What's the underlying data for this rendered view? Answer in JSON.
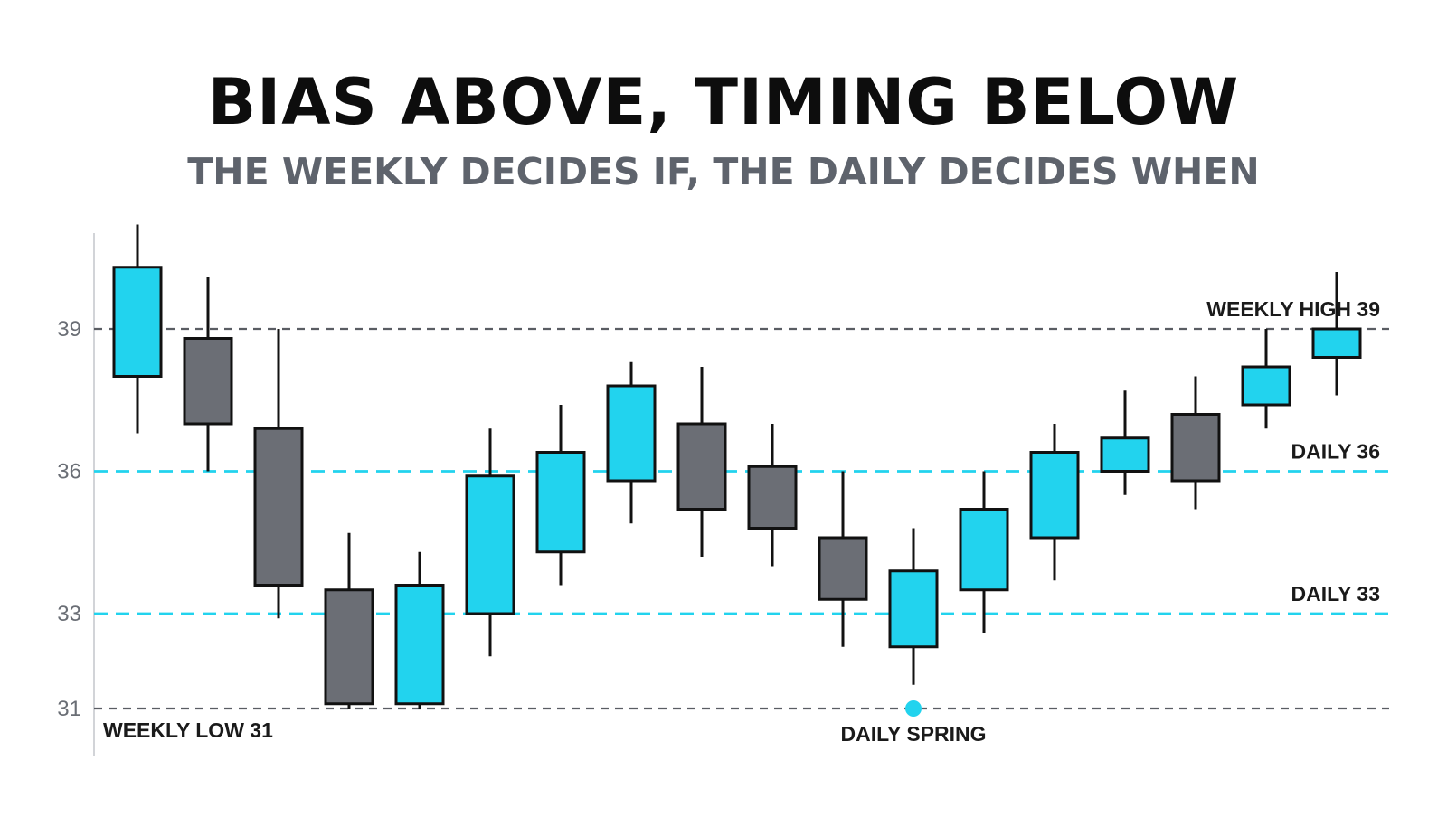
{
  "title": "BIAS ABOVE, TIMING BELOW",
  "subtitle": "THE WEEKLY DECIDES IF, THE DAILY DECIDES WHEN",
  "colors": {
    "bullish": "#22d3ee",
    "bearish": "#6b6e75",
    "weekly_line": "#5a5d63",
    "daily_line": "#22d3ee",
    "outline": "#111111"
  },
  "chart_data": {
    "type": "candlestick",
    "y_ticks": [
      "39",
      "36",
      "33",
      "31"
    ],
    "y_tick_values": [
      39,
      36,
      33,
      31
    ],
    "ylim": [
      29.7,
      40.6
    ],
    "grid": false,
    "levels": [
      {
        "value": 39,
        "label": "WEEKLY HIGH 39",
        "style": "weekly",
        "label_side": "right"
      },
      {
        "value": 36,
        "label": "DAILY 36",
        "style": "daily",
        "label_side": "right"
      },
      {
        "value": 33,
        "label": "DAILY 33",
        "style": "daily",
        "label_side": "right"
      },
      {
        "value": 31,
        "label": "WEEKLY LOW 31",
        "style": "weekly",
        "label_side": "left"
      }
    ],
    "candles": [
      {
        "open": 38.0,
        "close": 40.3,
        "high": 41.2,
        "low": 36.8
      },
      {
        "open": 38.8,
        "close": 37.0,
        "high": 40.1,
        "low": 36.0
      },
      {
        "open": 36.9,
        "close": 33.6,
        "high": 39.0,
        "low": 32.9
      },
      {
        "open": 33.5,
        "close": 31.1,
        "high": 34.7,
        "low": 31.0
      },
      {
        "open": 31.1,
        "close": 33.6,
        "high": 34.3,
        "low": 31.0
      },
      {
        "open": 33.0,
        "close": 35.9,
        "high": 36.9,
        "low": 32.1
      },
      {
        "open": 34.3,
        "close": 36.4,
        "high": 37.4,
        "low": 33.6
      },
      {
        "open": 35.8,
        "close": 37.8,
        "high": 38.3,
        "low": 34.9
      },
      {
        "open": 37.0,
        "close": 35.2,
        "high": 38.2,
        "low": 34.2
      },
      {
        "open": 36.1,
        "close": 34.8,
        "high": 37.0,
        "low": 34.0
      },
      {
        "open": 34.6,
        "close": 33.3,
        "high": 36.0,
        "low": 32.3
      },
      {
        "open": 32.3,
        "close": 33.9,
        "high": 34.8,
        "low": 31.5
      },
      {
        "open": 33.5,
        "close": 35.2,
        "high": 36.0,
        "low": 32.6
      },
      {
        "open": 34.6,
        "close": 36.4,
        "high": 37.0,
        "low": 33.7
      },
      {
        "open": 36.0,
        "close": 36.7,
        "high": 37.7,
        "low": 35.5
      },
      {
        "open": 37.2,
        "close": 35.8,
        "high": 38.0,
        "low": 35.2
      },
      {
        "open": 37.4,
        "close": 38.2,
        "high": 39.0,
        "low": 36.9
      },
      {
        "open": 38.4,
        "close": 39.0,
        "high": 40.2,
        "low": 37.6
      }
    ],
    "markers": [
      {
        "label": "DAILY SPRING",
        "candle_index": 11,
        "value": 31.0
      }
    ]
  }
}
